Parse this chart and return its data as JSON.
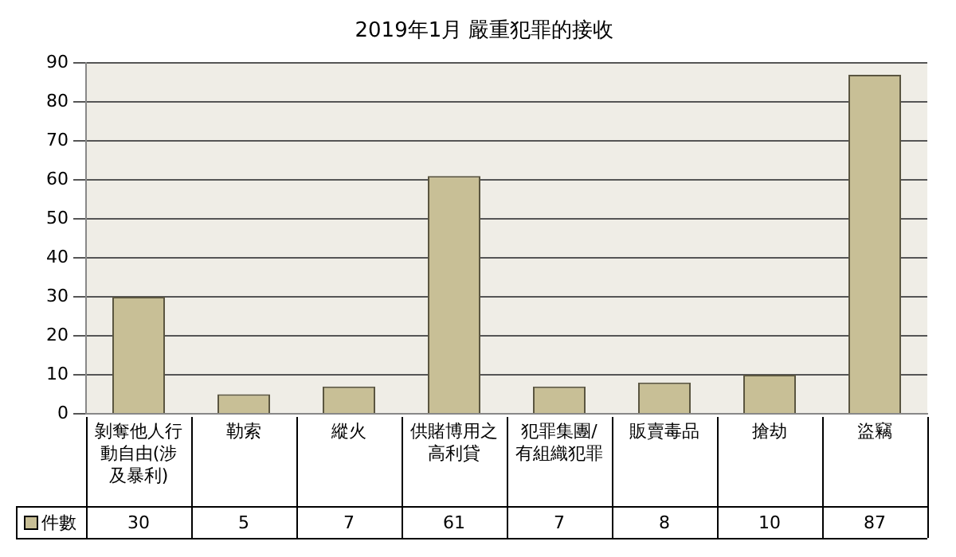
{
  "chart_data": {
    "type": "bar",
    "title": "2019年1月 嚴重犯罪的接收",
    "categories": [
      "剝奪他人行動自由(涉及暴利)",
      "勒索",
      "縱火",
      "供賭博用之高利貸",
      "犯罪集團/有組織犯罪",
      "販賣毒品",
      "搶劫",
      "盜竊"
    ],
    "series": [
      {
        "name": "件數",
        "color": "#c8bf96",
        "values": [
          30,
          5,
          7,
          61,
          7,
          8,
          10,
          87
        ]
      }
    ],
    "ylim": [
      0,
      90
    ],
    "yticks": [
      0,
      10,
      20,
      30,
      40,
      50,
      60,
      70,
      80,
      90
    ],
    "grid": "y",
    "legend": "bottom left",
    "data_labels": true
  }
}
